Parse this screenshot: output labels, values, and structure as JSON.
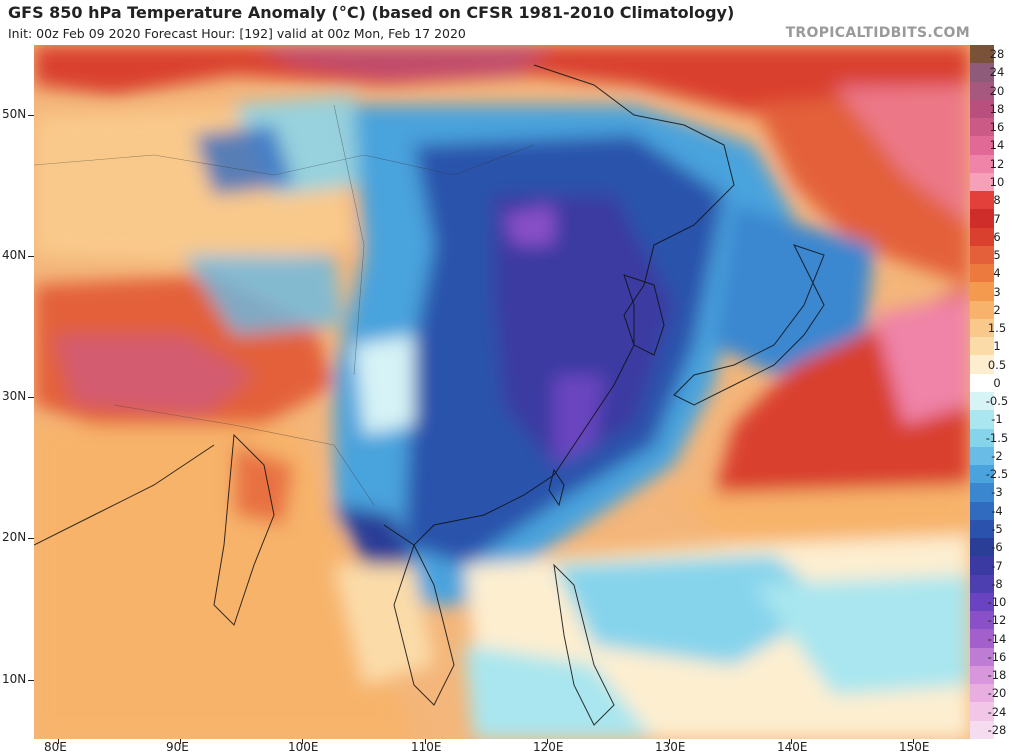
{
  "header": {
    "title": "GFS 850 hPa Temperature Anomaly (°C) (based on CFSR 1981-2010 Climatology)",
    "subtitle": "Init: 00z Feb 09 2020   Forecast Hour: [192]   valid at 00z Mon, Feb 17 2020",
    "brand": "TROPICALTIDBITS.COM"
  },
  "map": {
    "latitude_labels": [
      "50N",
      "40N",
      "30N",
      "20N",
      "10N"
    ],
    "longitude_labels": [
      "80E",
      "90E",
      "100E",
      "110E",
      "120E",
      "130E",
      "140E",
      "150E"
    ],
    "features": {
      "cold_anomaly": "East China, Korea, Taiwan, northern Vietnam",
      "warm_anomaly": "Tibetan Plateau, India, western Pacific east of Japan"
    }
  },
  "colorbar": {
    "labels": [
      "28",
      "24",
      "20",
      "18",
      "16",
      "14",
      "12",
      "10",
      "8",
      "7",
      "6",
      "5",
      "4",
      "3",
      "2",
      "1.5",
      "1",
      "0.5",
      "0",
      "-0.5",
      "-1",
      "-1.5",
      "-2",
      "-2.5",
      "-3",
      "-4",
      "-5",
      "-6",
      "-7",
      "-8",
      "-10",
      "-12",
      "-14",
      "-16",
      "-18",
      "-20",
      "-24",
      "-28"
    ],
    "colors": [
      "#7a5238",
      "#8e5c7a",
      "#a7587e",
      "#b84f7c",
      "#cc5a86",
      "#e06a95",
      "#ef83a8",
      "#f6a1b9",
      "#e3403c",
      "#cf2d2a",
      "#d9402e",
      "#e3603a",
      "#ec7a3f",
      "#f39a4f",
      "#f7b36b",
      "#f9c98b",
      "#fbdca9",
      "#fdeed0",
      "#ffffff",
      "#d6f3f6",
      "#a9e6ef",
      "#86d4ec",
      "#68bce6",
      "#4aa3dd",
      "#3a87d0",
      "#306bc0",
      "#2b52ac",
      "#2a3d97",
      "#3a3aa2",
      "#4d3fb0",
      "#6a44c0",
      "#8a50c8",
      "#a360cc",
      "#bf7cd4",
      "#d896dc",
      "#e8aee0",
      "#f1c6e7",
      "#f6dcef"
    ]
  }
}
